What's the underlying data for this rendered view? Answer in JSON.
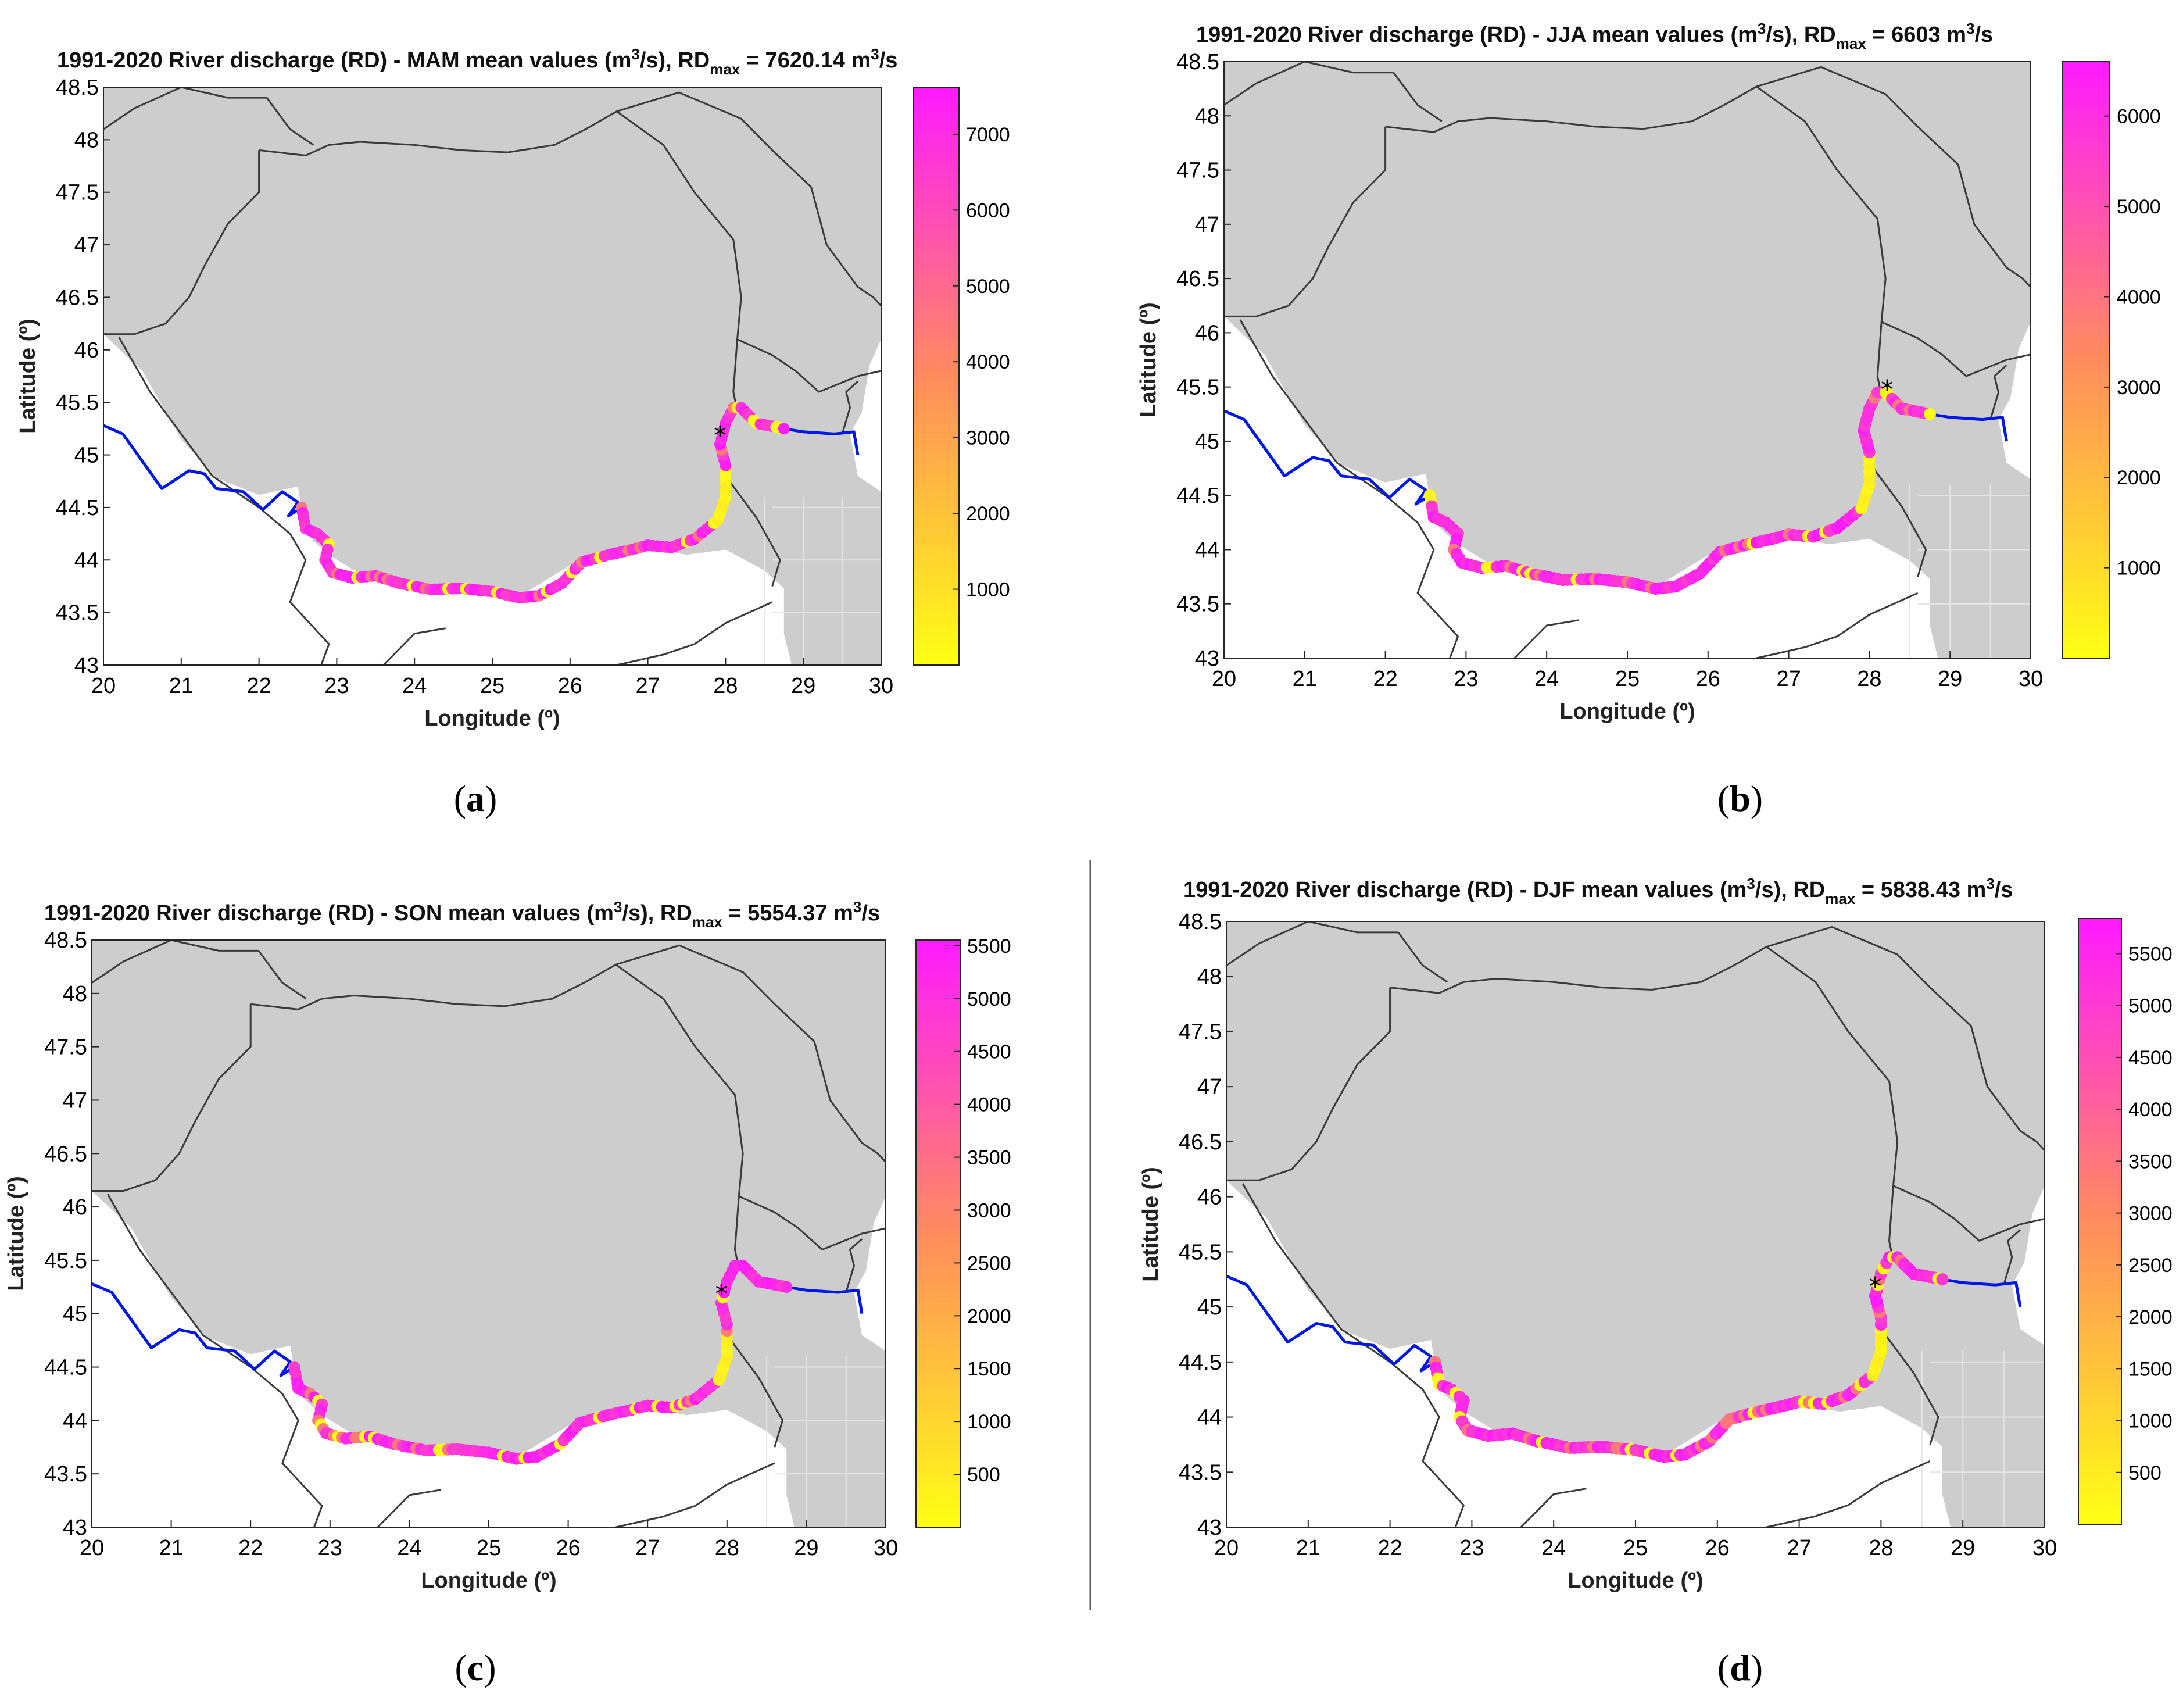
{
  "colors": {
    "land": "#cdcdcd",
    "border": "#3a3a3a",
    "river": "#0018e6",
    "scale_low": "#ffff14",
    "scale_mid": "#ff8c5e",
    "scale_high": "#ff1aff"
  },
  "axis_text": {
    "xlabel": "Longitude (º)",
    "ylabel": "Latitude (º)"
  },
  "chart_data": [
    {
      "type": "scatter",
      "panel": "(a)",
      "title": {
        "pre": "1991-2020 River discharge (RD) - MAM mean values (m",
        "sup": "3",
        "mid": "/s), RD",
        "sub": "max",
        "post": " = 7620.14 m",
        "sup2": "3",
        "end": "/s"
      },
      "xlabel": "Longitude (º)",
      "ylabel": "Latitude (º)",
      "xlim": [
        20,
        30
      ],
      "ylim": [
        43,
        48.5
      ],
      "xticks": [
        "20",
        "21",
        "22",
        "23",
        "24",
        "25",
        "26",
        "27",
        "28",
        "29",
        "30"
      ],
      "yticks": [
        "43",
        "43.5",
        "44",
        "44.5",
        "45",
        "45.5",
        "46",
        "46.5",
        "47",
        "47.5",
        "48",
        "48.5"
      ],
      "colorbar": {
        "min": 0,
        "max": 7620.14,
        "ticks": [
          "1000",
          "2000",
          "3000",
          "4000",
          "5000",
          "6000",
          "7000"
        ]
      },
      "marker": "*",
      "marker_lonlat": [
        27.93,
        45.18
      ]
    },
    {
      "type": "scatter",
      "panel": "(b)",
      "title": {
        "pre": "1991-2020 River discharge (RD) - JJA mean values (m",
        "sup": "3",
        "mid": "/s), RD",
        "sub": "max",
        "post": " = 6603 m",
        "sup2": "3",
        "end": "/s"
      },
      "xlabel": "Longitude (º)",
      "ylabel": "Latitude (º)",
      "xlim": [
        20,
        30
      ],
      "ylim": [
        43,
        48.5
      ],
      "xticks": [
        "20",
        "21",
        "22",
        "23",
        "24",
        "25",
        "26",
        "27",
        "28",
        "29",
        "30"
      ],
      "yticks": [
        "43",
        "43.5",
        "44",
        "44.5",
        "45",
        "45.5",
        "46",
        "46.5",
        "47",
        "47.5",
        "48",
        "48.5"
      ],
      "colorbar": {
        "min": 0,
        "max": 6603,
        "ticks": [
          "1000",
          "2000",
          "3000",
          "4000",
          "5000",
          "6000"
        ]
      },
      "marker": "*",
      "marker_lonlat": [
        28.22,
        45.47
      ]
    },
    {
      "type": "scatter",
      "panel": "(c)",
      "title": {
        "pre": "1991-2020 River discharge (RD) - SON mean values (m",
        "sup": "3",
        "mid": "/s), RD",
        "sub": "max",
        "post": " = 5554.37 m",
        "sup2": "3",
        "end": "/s"
      },
      "xlabel": "Longitude (º)",
      "ylabel": "Latitude (º)",
      "xlim": [
        20,
        30
      ],
      "ylim": [
        43,
        48.5
      ],
      "xticks": [
        "20",
        "21",
        "22",
        "23",
        "24",
        "25",
        "26",
        "27",
        "28",
        "29",
        "30"
      ],
      "yticks": [
        "43",
        "43.5",
        "44",
        "44.5",
        "45",
        "45.5",
        "46",
        "46.5",
        "47",
        "47.5",
        "48",
        "48.5"
      ],
      "colorbar": {
        "min": 0,
        "max": 5554.37,
        "ticks": [
          "500",
          "1000",
          "1500",
          "2000",
          "2500",
          "3000",
          "3500",
          "4000",
          "4500",
          "5000",
          "5500"
        ]
      },
      "marker": "*",
      "marker_lonlat": [
        27.93,
        45.18
      ]
    },
    {
      "type": "scatter",
      "panel": "(d)",
      "title": {
        "pre": "1991-2020 River discharge (RD) - DJF mean values (m",
        "sup": "3",
        "mid": "/s), RD",
        "sub": "max",
        "post": " = 5838.43 m",
        "sup2": "3",
        "end": "/s"
      },
      "xlabel": "Longitude (º)",
      "ylabel": "Latitude (º)",
      "xlim": [
        20,
        30
      ],
      "ylim": [
        43,
        48.5
      ],
      "xticks": [
        "20",
        "21",
        "22",
        "23",
        "24",
        "25",
        "26",
        "27",
        "28",
        "29",
        "30"
      ],
      "yticks": [
        "43",
        "43.5",
        "44",
        "44.5",
        "45",
        "45.5",
        "46",
        "46.5",
        "47",
        "47.5",
        "48",
        "48.5"
      ],
      "colorbar": {
        "min": 0,
        "max": 5838.43,
        "ticks": [
          "500",
          "1000",
          "1500",
          "2000",
          "2500",
          "3000",
          "3500",
          "4000",
          "4500",
          "5000",
          "5500"
        ]
      },
      "marker": "*",
      "marker_lonlat": [
        27.93,
        45.18
      ]
    }
  ]
}
